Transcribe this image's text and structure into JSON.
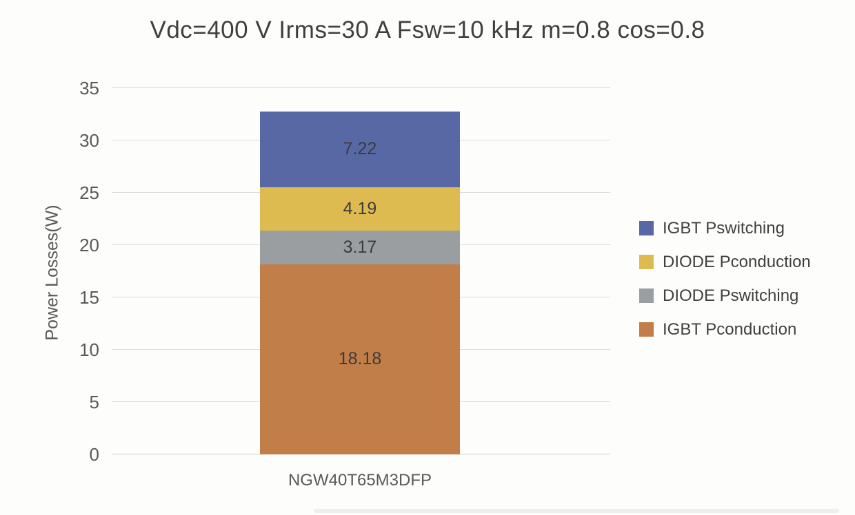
{
  "chart_data": {
    "type": "bar",
    "stacked": true,
    "title": "Vdc=400 V Irms=30 A Fsw=10 kHz m=0.8 cos=0.8",
    "categories": [
      "NGW40T65M3DFP"
    ],
    "series": [
      {
        "name": "IGBT Pconduction",
        "values": [
          18.18
        ],
        "label": "18.18",
        "color": "#c17e48"
      },
      {
        "name": "DIODE Pswitching",
        "values": [
          3.17
        ],
        "label": "3.17",
        "color": "#9b9ea1"
      },
      {
        "name": "DIODE Pconduction",
        "values": [
          4.19
        ],
        "label": "4.19",
        "color": "#ddbb51"
      },
      {
        "name": "IGBT Pswitching",
        "values": [
          7.22
        ],
        "label": "7.22",
        "color": "#5868a4"
      }
    ],
    "legend": [
      "IGBT Pswitching",
      "DIODE Pconduction",
      "DIODE Pswitching",
      "IGBT Pconduction"
    ],
    "legend_position": "right",
    "xlabel": "",
    "ylabel": "Power Losses(W)",
    "ylim": [
      0,
      35
    ],
    "yticks": [
      0,
      5,
      10,
      15,
      20,
      25,
      30,
      35
    ],
    "grid": true
  },
  "colors": {
    "title_text": "#3f3f3f",
    "axis_text": "#595959",
    "data_label_text": "#3b3b3b",
    "gridline": "#dadada",
    "background": "#fdfdfc"
  }
}
